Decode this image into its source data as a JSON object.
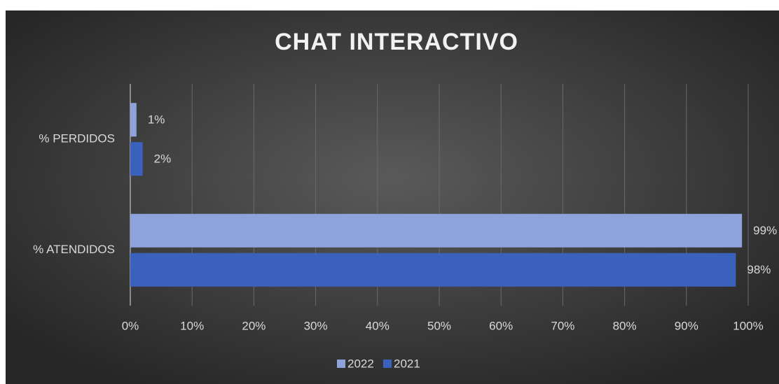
{
  "chart_data": {
    "type": "hbar",
    "title": "CHAT INTERACTIVO",
    "categories": [
      "% PERDIDOS",
      "% ATENDIDOS"
    ],
    "series": [
      {
        "name": "2022",
        "color": "#8ea3dc",
        "values": [
          1,
          99
        ],
        "value_labels": [
          "1%",
          "99%"
        ]
      },
      {
        "name": "2021",
        "color": "#3a62bd",
        "values": [
          2,
          98
        ],
        "value_labels": [
          "2%",
          "98%"
        ]
      }
    ],
    "xlim": [
      0,
      100
    ],
    "xticks": [
      {
        "value": 0,
        "label": "0%"
      },
      {
        "value": 10,
        "label": "10%"
      },
      {
        "value": 20,
        "label": "20%"
      },
      {
        "value": 30,
        "label": "30%"
      },
      {
        "value": 40,
        "label": "40%"
      },
      {
        "value": 50,
        "label": "50%"
      },
      {
        "value": 60,
        "label": "60%"
      },
      {
        "value": 70,
        "label": "70%"
      },
      {
        "value": 80,
        "label": "80%"
      },
      {
        "value": 90,
        "label": "90%"
      },
      {
        "value": 100,
        "label": "100%"
      }
    ],
    "grid": true,
    "legend": "bottom"
  }
}
